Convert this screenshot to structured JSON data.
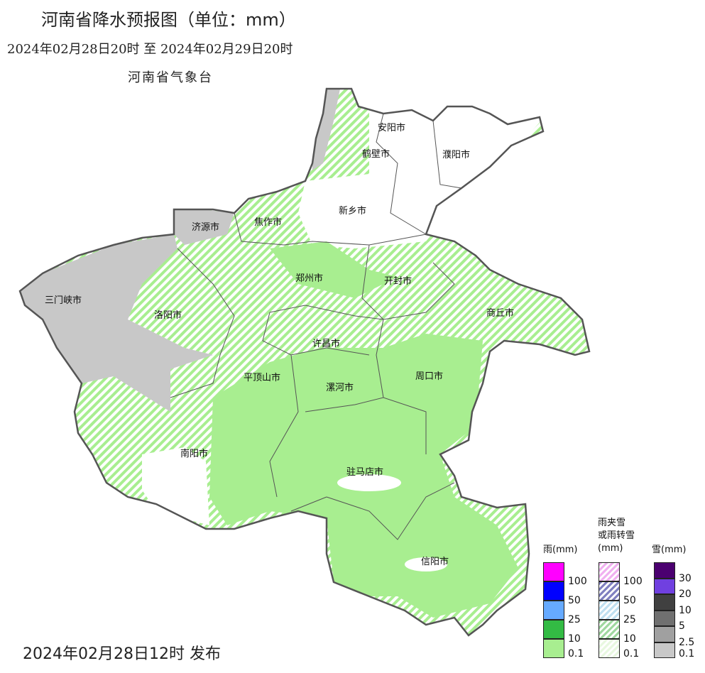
{
  "header": {
    "title": "河南省降水预报图（单位：mm）",
    "period": "2024年02月28日20时  至  2024年02月29日20时",
    "organization": "河南省气象台"
  },
  "footer": {
    "issued": "2024年02月28日12时 发布"
  },
  "cities": [
    "安阳市",
    "鹤壁市",
    "濮阳市",
    "新乡市",
    "焦作市",
    "济源市",
    "郑州市",
    "开封市",
    "三门峡市",
    "洛阳市",
    "商丘市",
    "许昌市",
    "平顶山市",
    "漯河市",
    "周口市",
    "南阳市",
    "驻马店市",
    "信阳市"
  ],
  "legend": {
    "rain": {
      "title": "雨(mm)",
      "levels": [
        "100",
        "50",
        "25",
        "10",
        "0.1"
      ],
      "colors": [
        "#ff00ff",
        "#0000ff",
        "#66aaff",
        "#33bb44",
        "#a8ee90"
      ]
    },
    "mixed": {
      "title_line1": "雨夹雪",
      "title_line2": "或雨转雪",
      "title_line3": "(mm)",
      "levels": [
        "100",
        "50",
        "25",
        "10",
        "0.1"
      ],
      "colors": [
        "#f0b0f0",
        "#8080c0",
        "#c0e0f0",
        "#a0d8a0",
        "#e8f8e0"
      ]
    },
    "snow": {
      "title": "雪(mm)",
      "levels": [
        "30",
        "20",
        "10",
        "5",
        "2.5",
        "0.1"
      ],
      "colors": [
        "#4b0070",
        "#7040e0",
        "#404040",
        "#707070",
        "#a0a0a0",
        "#c8c8c8"
      ]
    }
  }
}
